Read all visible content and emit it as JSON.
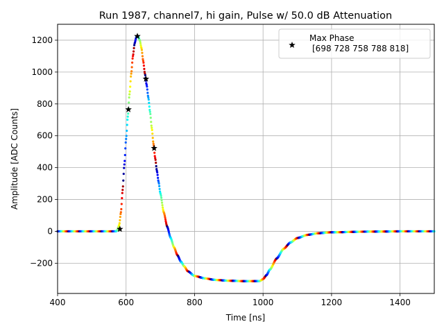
{
  "chart_data": {
    "type": "scatter",
    "title": "Run 1987, channel7, hi gain, Pulse w/ 50.0 dB Attenuation",
    "xlabel": "Time [ns]",
    "ylabel": "Amplitude [ADC Counts]",
    "xlim": [
      400,
      1500
    ],
    "ylim": [
      -390,
      1300
    ],
    "xticks": [
      400,
      600,
      800,
      1000,
      1200,
      1400
    ],
    "yticks": [
      -200,
      0,
      200,
      400,
      600,
      800,
      1000,
      1200
    ],
    "xtick_labels": [
      "400",
      "600",
      "800",
      "1000",
      "1200",
      "1400"
    ],
    "ytick_labels": [
      "−200",
      "0",
      "200",
      "400",
      "600",
      "800",
      "1000",
      "1200"
    ],
    "grid": true,
    "legend_position": "top-right",
    "pulse_shape": [
      [
        400,
        0
      ],
      [
        570,
        0
      ],
      [
        575,
        8
      ],
      [
        580,
        40
      ],
      [
        585,
        120
      ],
      [
        590,
        260
      ],
      [
        595,
        420
      ],
      [
        600,
        580
      ],
      [
        605,
        720
      ],
      [
        610,
        860
      ],
      [
        615,
        990
      ],
      [
        620,
        1100
      ],
      [
        625,
        1180
      ],
      [
        630,
        1220
      ],
      [
        635,
        1225
      ],
      [
        640,
        1200
      ],
      [
        645,
        1150
      ],
      [
        650,
        1070
      ],
      [
        655,
        990
      ],
      [
        660,
        920
      ],
      [
        665,
        840
      ],
      [
        670,
        750
      ],
      [
        675,
        650
      ],
      [
        680,
        550
      ],
      [
        685,
        460
      ],
      [
        690,
        380
      ],
      [
        695,
        310
      ],
      [
        700,
        240
      ],
      [
        710,
        120
      ],
      [
        720,
        30
      ],
      [
        730,
        -40
      ],
      [
        740,
        -100
      ],
      [
        750,
        -150
      ],
      [
        760,
        -190
      ],
      [
        770,
        -220
      ],
      [
        780,
        -250
      ],
      [
        800,
        -280
      ],
      [
        830,
        -295
      ],
      [
        860,
        -305
      ],
      [
        900,
        -310
      ],
      [
        950,
        -313
      ],
      [
        990,
        -312
      ],
      [
        1000,
        -300
      ],
      [
        1010,
        -275
      ],
      [
        1020,
        -240
      ],
      [
        1040,
        -170
      ],
      [
        1060,
        -110
      ],
      [
        1080,
        -70
      ],
      [
        1100,
        -42
      ],
      [
        1130,
        -22
      ],
      [
        1160,
        -12
      ],
      [
        1200,
        -6
      ],
      [
        1300,
        -2
      ],
      [
        1400,
        0
      ],
      [
        1500,
        0
      ]
    ],
    "series": [
      {
        "name": "Max Phase",
        "name_line2": "[698 728 758 788 818]",
        "marker": "star",
        "color": "#000000",
        "points": [
          [
            582,
            14
          ],
          [
            607,
            765
          ],
          [
            633,
            1225
          ],
          [
            658,
            957
          ],
          [
            682,
            522
          ]
        ]
      }
    ]
  }
}
